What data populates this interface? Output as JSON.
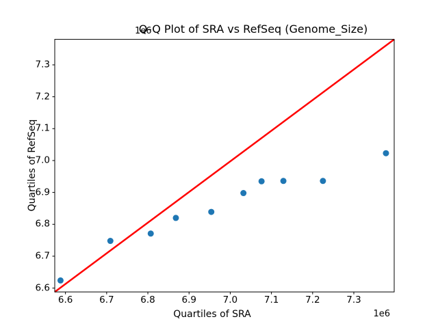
{
  "figure_title": "Q-Q Plot of SRA vs RefSeq (Genome_Size)",
  "axes": {
    "x": {
      "label": "Quartiles of SRA",
      "offset_text": "1e6",
      "tick_values": [
        6.6,
        6.7,
        6.8,
        6.9,
        7.0,
        7.1,
        7.2,
        7.3
      ]
    },
    "y": {
      "label": "Quartiles of RefSeq",
      "offset_text": "1e6",
      "tick_values": [
        6.6,
        6.7,
        6.8,
        6.9,
        7.0,
        7.1,
        7.2,
        7.3
      ]
    }
  },
  "chart_data": {
    "type": "scatter",
    "title": "Q-Q Plot of SRA vs RefSeq (Genome_Size)",
    "xlabel": "Quartiles of SRA",
    "ylabel": "Quartiles of RefSeq",
    "axis_unit_multiplier": 1000000,
    "grid": false,
    "legend": null,
    "x_ticks": [
      6.6,
      6.7,
      6.8,
      6.9,
      7.0,
      7.1,
      7.2,
      7.3
    ],
    "y_ticks": [
      6.6,
      6.7,
      6.8,
      6.9,
      7.0,
      7.1,
      7.2,
      7.3
    ],
    "xlim": [
      6.574,
      7.398
    ],
    "ylim": [
      6.588,
      7.38
    ],
    "marker_color": "#1f77b4",
    "marker_radius_px": 4.5,
    "points": [
      {
        "x": 6.588,
        "y": 6.624
      },
      {
        "x": 6.709,
        "y": 6.748
      },
      {
        "x": 6.807,
        "y": 6.771
      },
      {
        "x": 6.868,
        "y": 6.82
      },
      {
        "x": 6.954,
        "y": 6.839
      },
      {
        "x": 7.032,
        "y": 6.898
      },
      {
        "x": 7.076,
        "y": 6.935
      },
      {
        "x": 7.129,
        "y": 6.936
      },
      {
        "x": 7.225,
        "y": 6.936
      },
      {
        "x": 7.378,
        "y": 7.023
      }
    ],
    "reference_line": {
      "description": "y = x identity line",
      "color": "#ff0000",
      "x": [
        6.574,
        7.398
      ],
      "y": [
        6.588,
        7.38
      ]
    }
  }
}
